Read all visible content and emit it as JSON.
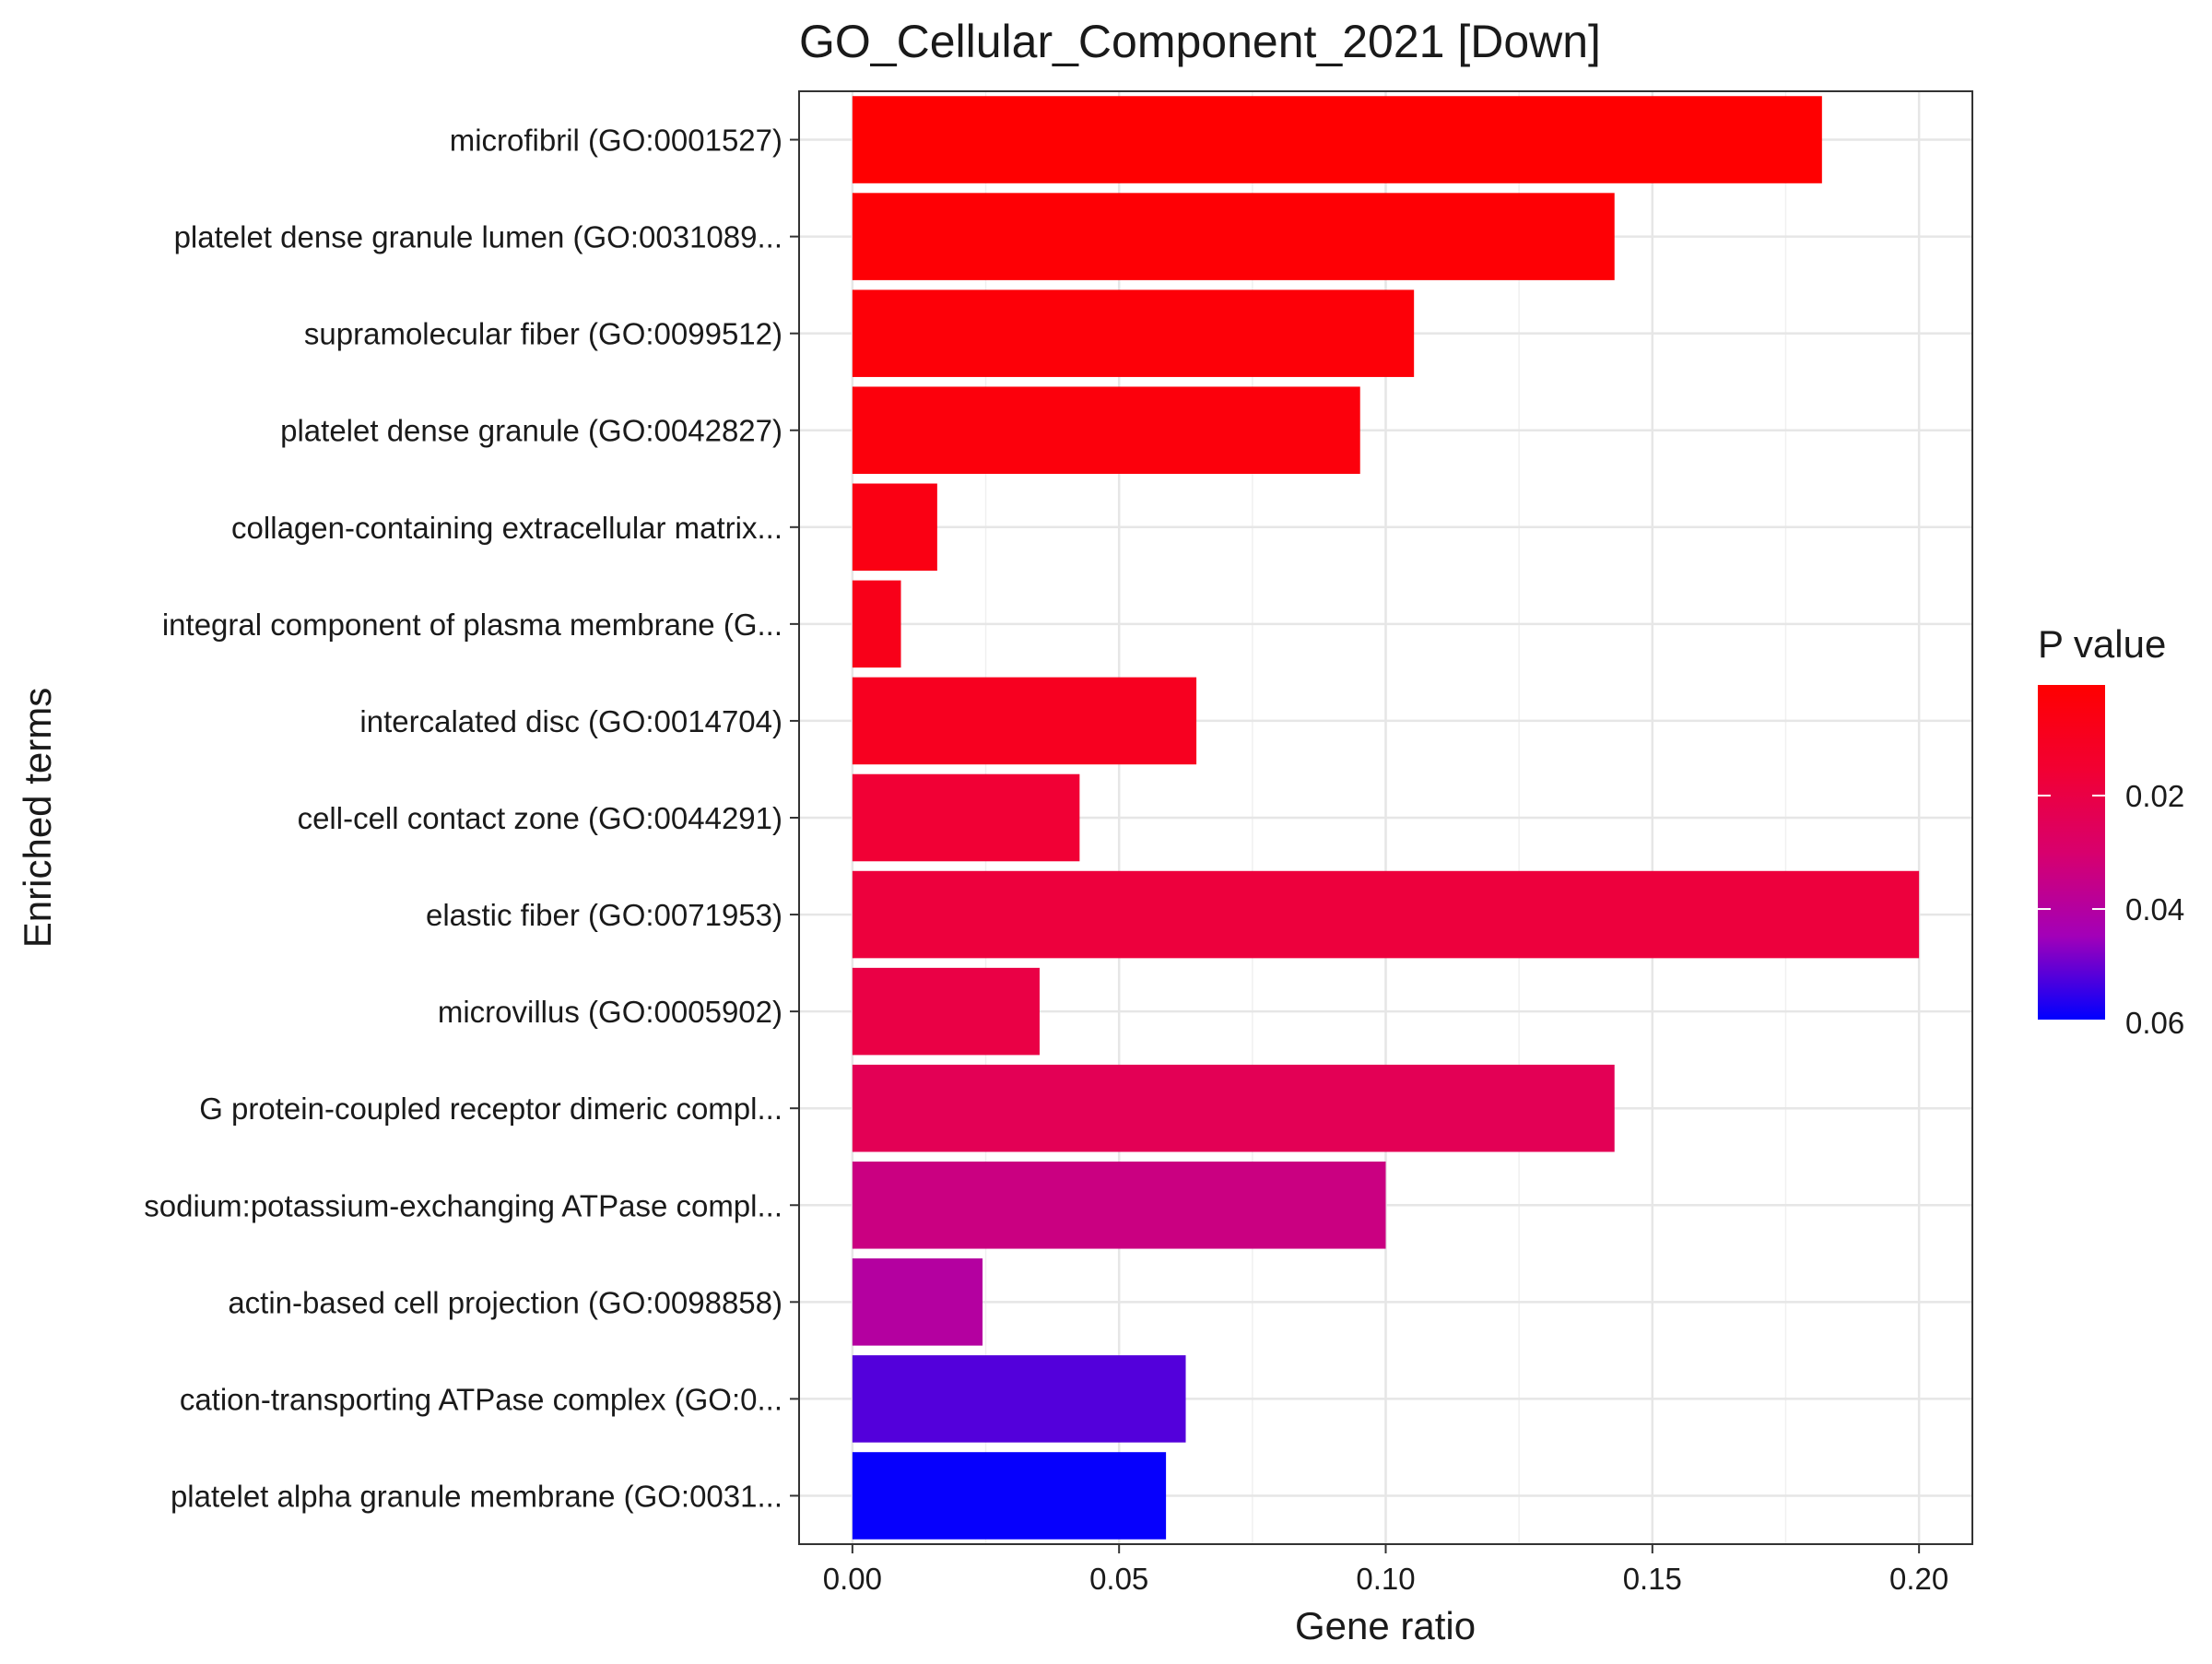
{
  "chart_data": {
    "type": "bar",
    "orientation": "horizontal",
    "title": "GO_Cellular_Component_2021 [Down]",
    "xlabel": "Gene ratio",
    "ylabel": "Enriched terms",
    "xlim": [
      -0.01,
      0.21
    ],
    "xticks": [
      0.0,
      0.05,
      0.1,
      0.15,
      0.2
    ],
    "xtick_labels": [
      "0.00",
      "0.05",
      "0.10",
      "0.15",
      "0.20"
    ],
    "grid": true,
    "legend": {
      "title": "P value",
      "placement": "right",
      "range": [
        0.0005,
        0.0595
      ],
      "ticks": [
        0.02,
        0.04,
        0.06
      ],
      "tick_labels": [
        "0.02",
        "0.04",
        "0.06"
      ],
      "color_low": "#ff0000",
      "color_high": "#0000ff"
    },
    "categories": [
      "microfibril (GO:0001527)",
      "platelet dense granule lumen (GO:0031089...",
      "supramolecular fiber (GO:0099512)",
      "platelet dense granule (GO:0042827)",
      "collagen-containing extracellular matrix...",
      "integral component of plasma membrane (G...",
      "intercalated disc (GO:0014704)",
      "cell-cell contact zone (GO:0044291)",
      "elastic fiber (GO:0071953)",
      "microvillus (GO:0005902)",
      "G protein-coupled receptor dimeric compl...",
      "sodium:potassium-exchanging ATPase compl...",
      "actin-based cell projection (GO:0098858)",
      "cation-transporting ATPase complex (GO:0...",
      "platelet alpha granule membrane (GO:0031..."
    ],
    "values": [
      0.1818,
      0.1429,
      0.1053,
      0.0952,
      0.0159,
      0.0091,
      0.0645,
      0.0426,
      0.2,
      0.0351,
      0.1429,
      0.1,
      0.0244,
      0.0625,
      0.0588
    ],
    "p_values": [
      0.0008,
      0.002,
      0.003,
      0.004,
      0.006,
      0.008,
      0.01,
      0.016,
      0.018,
      0.02,
      0.024,
      0.034,
      0.04,
      0.052,
      0.059
    ]
  }
}
